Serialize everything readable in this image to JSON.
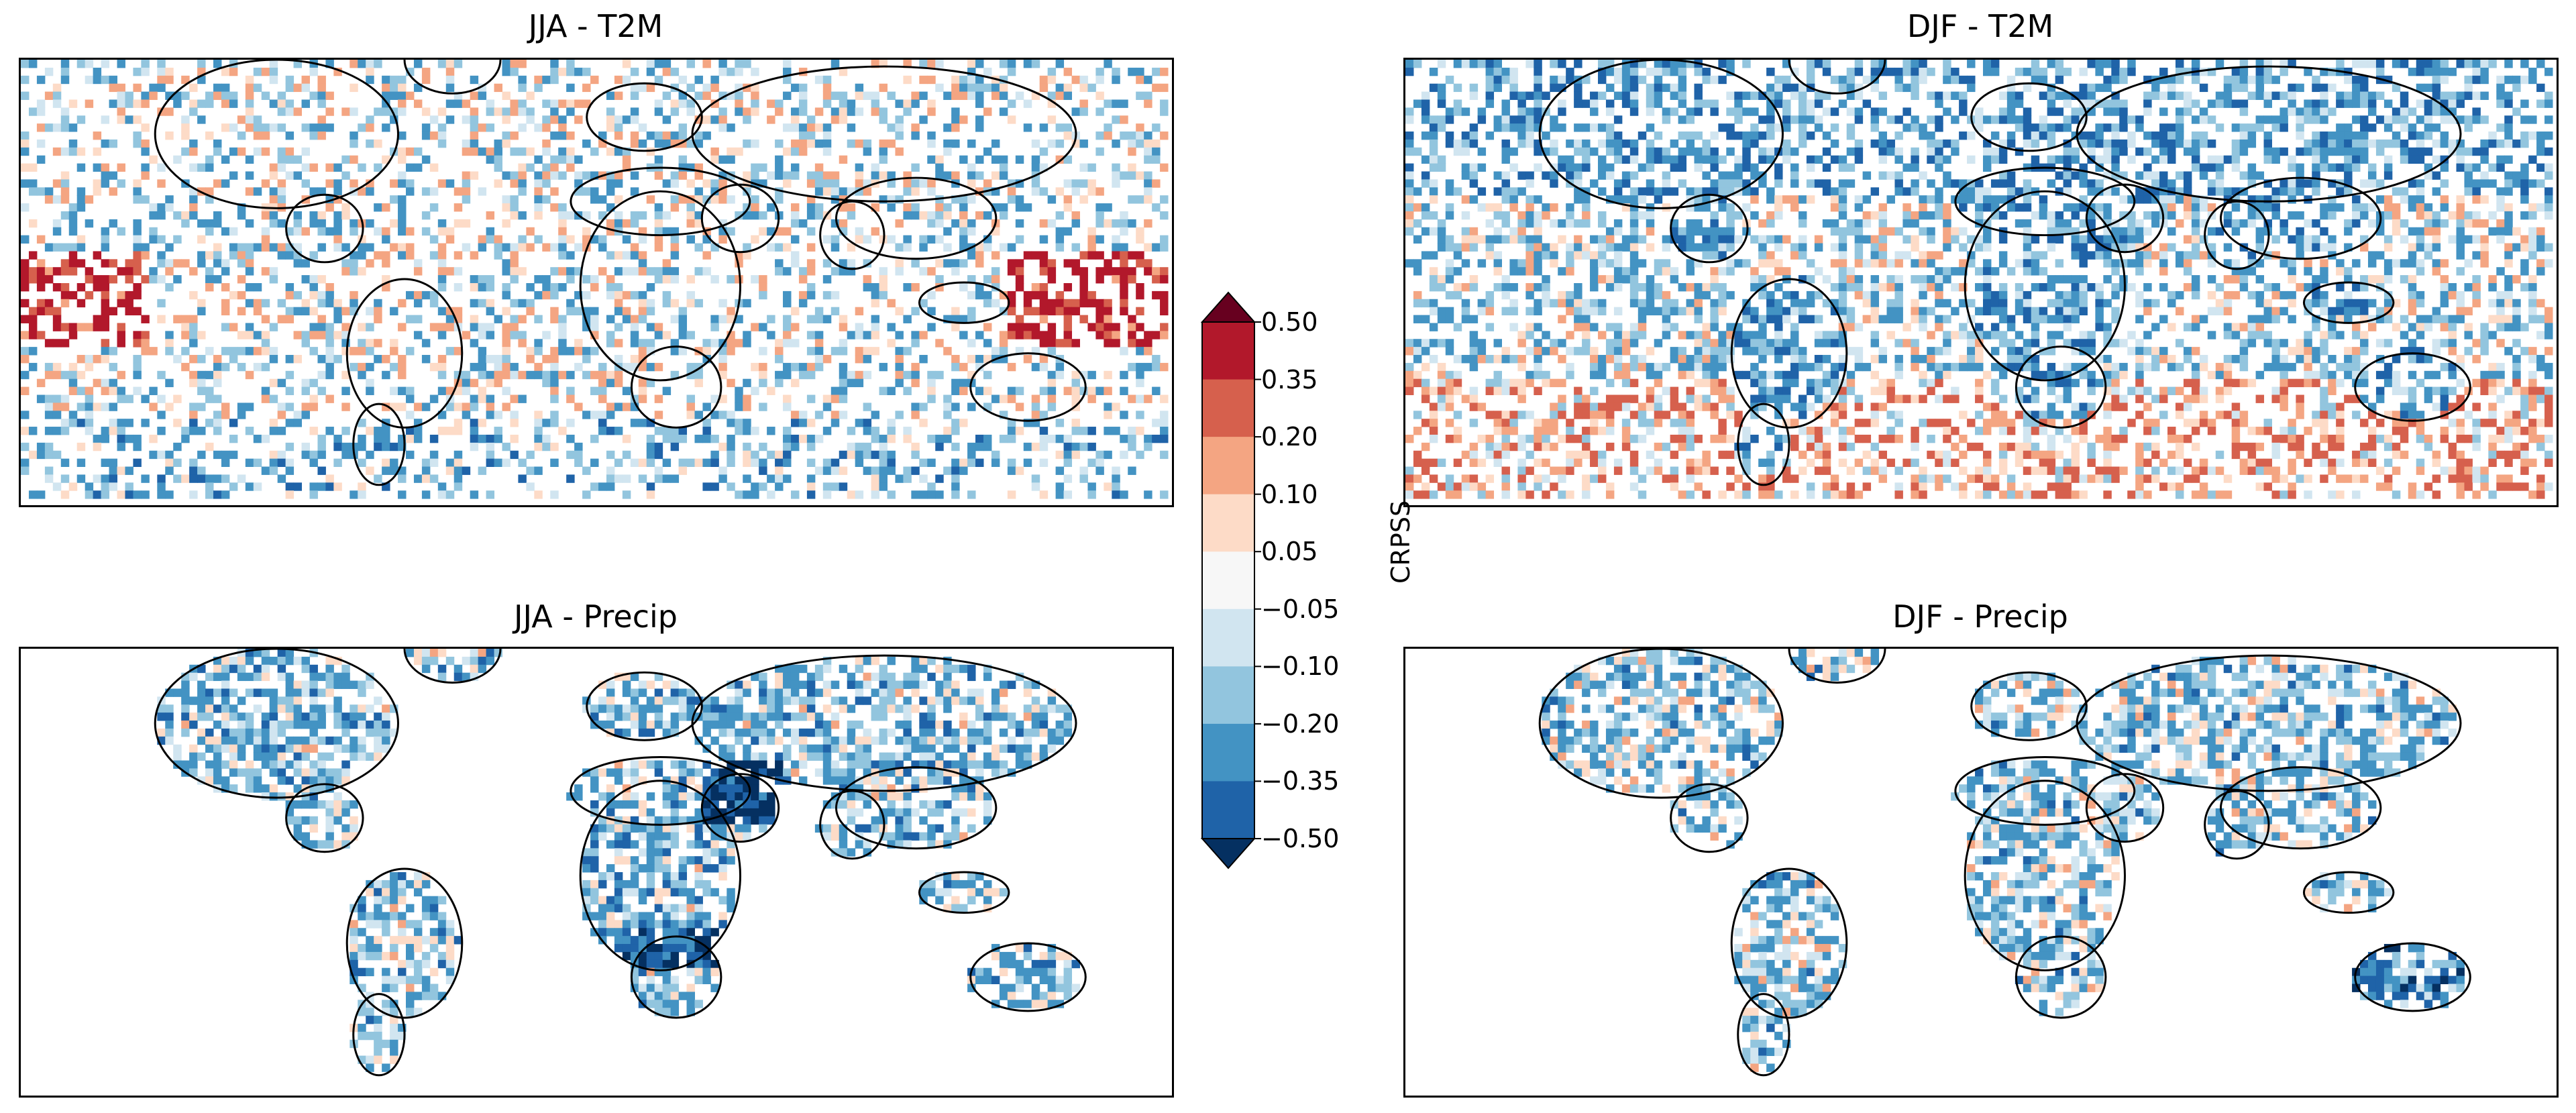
{
  "figure": {
    "panels": [
      {
        "id": "jja-t2m",
        "title": "JJA - T2M",
        "variable": "T2M",
        "season": "JJA"
      },
      {
        "id": "djf-t2m",
        "title": "DJF - T2M",
        "variable": "T2M",
        "season": "DJF"
      },
      {
        "id": "jja-precip",
        "title": "JJA - Precip",
        "variable": "Precip",
        "season": "JJA"
      },
      {
        "id": "djf-precip",
        "title": "DJF - Precip",
        "variable": "Precip",
        "season": "DJF"
      }
    ]
  },
  "chart_data": {
    "type": "heatmap",
    "description_units": "CRPSS",
    "colorbar": {
      "label": "CRPSS",
      "ticks": [
        "0.50",
        "0.35",
        "0.20",
        "0.10",
        "0.05",
        "−0.05",
        "−0.10",
        "−0.20",
        "−0.35",
        "−0.50"
      ],
      "levels": [
        -0.5,
        -0.35,
        -0.2,
        -0.1,
        -0.05,
        0.05,
        0.1,
        0.2,
        0.35,
        0.5
      ],
      "colors": [
        "#1f63a8",
        "#4393c3",
        "#92c5de",
        "#d1e5f0",
        "#f7f7f7",
        "#fddbc7",
        "#f4a582",
        "#d6604d",
        "#b2182b"
      ],
      "under_color": "#053061",
      "over_color": "#67001f",
      "extend": "both"
    },
    "panels": [
      {
        "title": "JJA - T2M",
        "signal": "mixed: positive over tropical Pacific and South America, negative over subtropical oceans"
      },
      {
        "title": "DJF - T2M",
        "signal": "predominantly negative over northern hemisphere and Africa"
      },
      {
        "title": "JJA - Precip",
        "signal": "mostly negative over land, strong negative over Middle East and southern Africa"
      },
      {
        "title": "DJF - Precip",
        "signal": "mostly negative over land, strong negative over Australia"
      }
    ]
  }
}
